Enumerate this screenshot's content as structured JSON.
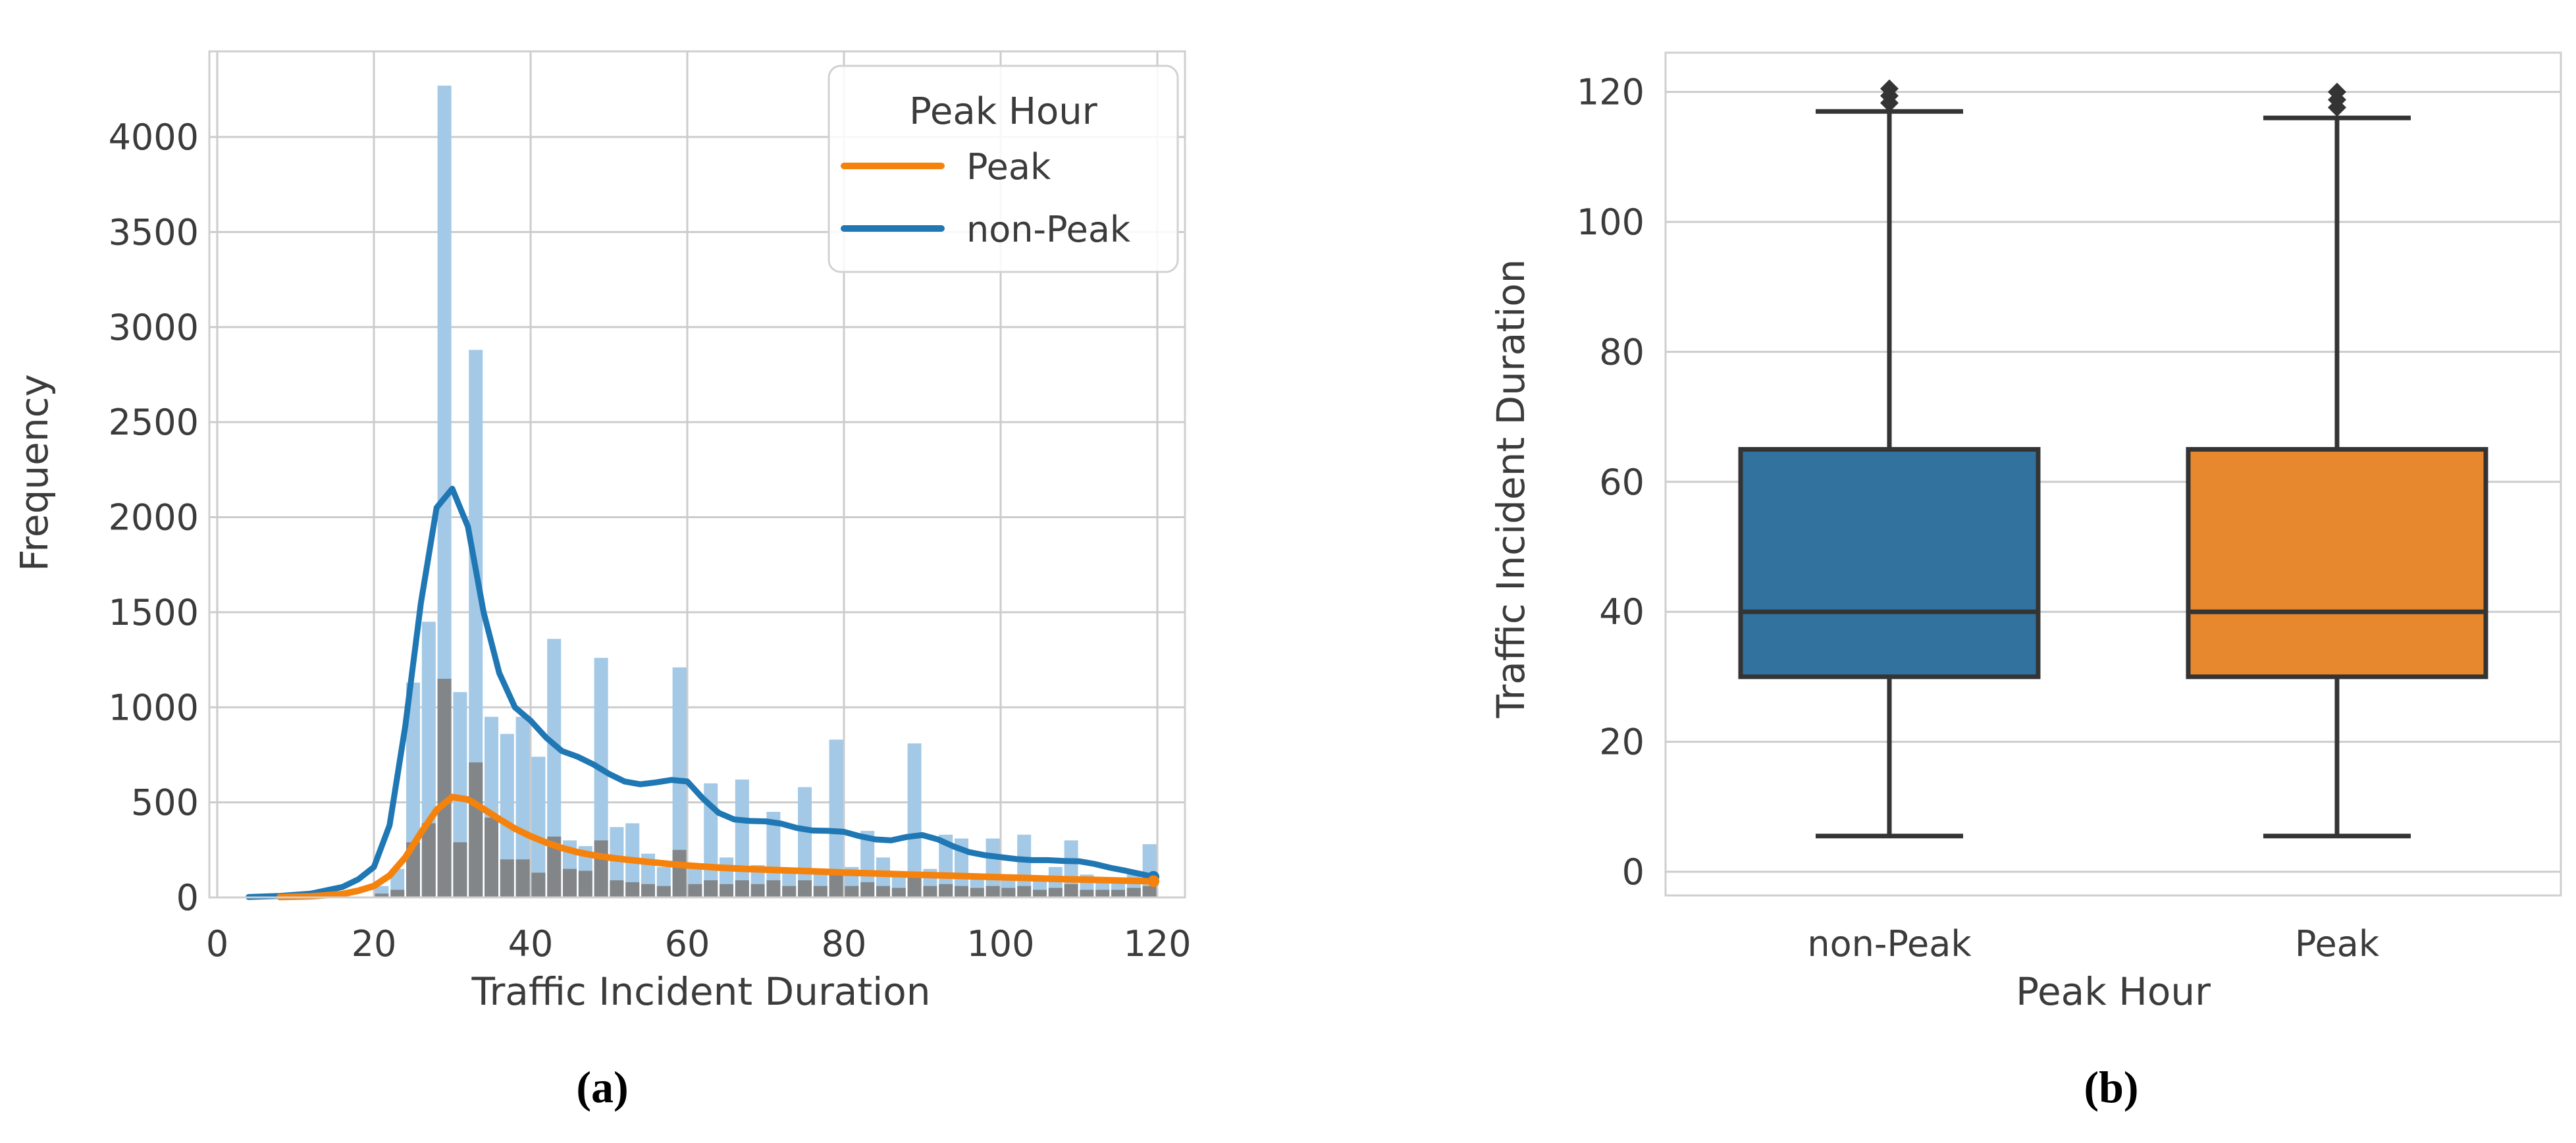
{
  "figure": {
    "captions": {
      "a": "(a)",
      "b": "(b)"
    }
  },
  "colors": {
    "kde_blue": "#1f77b4",
    "kde_orange": "#f5820d",
    "hist_blue": "#a3c9e6",
    "hist_gray": "#828689",
    "box_blue": "#31739e",
    "box_orange": "#e8882e",
    "box_edge": "#343434",
    "grid": "#cccccc",
    "spine": "#cfcfcf",
    "text": "#3b3b3b",
    "legend_border": "#d2d2d2",
    "legend_fill": "#ffffff"
  },
  "chart_data": [
    {
      "type": "histogram+kde",
      "xlabel": "Traffic Incident Duration",
      "ylabel": "Frequency",
      "xlim": [
        -1,
        123.5
      ],
      "ylim": [
        0,
        4450
      ],
      "xticks": [
        0,
        20,
        40,
        60,
        80,
        100,
        120
      ],
      "yticks": [
        0,
        500,
        1000,
        1500,
        2000,
        2500,
        3000,
        3500,
        4000
      ],
      "grid": "both",
      "bin_width": 2,
      "bin_centers": [
        21,
        23,
        25,
        27,
        29,
        31,
        33,
        35,
        37,
        39,
        41,
        43,
        45,
        47,
        49,
        51,
        53,
        55,
        57,
        59,
        61,
        63,
        65,
        67,
        69,
        71,
        73,
        75,
        77,
        79,
        81,
        83,
        85,
        87,
        89,
        91,
        93,
        95,
        97,
        99,
        101,
        103,
        105,
        107,
        109,
        111,
        113,
        115,
        117,
        119
      ],
      "series": [
        {
          "name": "non-Peak",
          "values": [
            60,
            150,
            1130,
            1450,
            4270,
            1080,
            2880,
            950,
            860,
            950,
            740,
            1360,
            300,
            270,
            1260,
            370,
            390,
            230,
            160,
            1210,
            180,
            600,
            210,
            620,
            170,
            450,
            150,
            580,
            140,
            830,
            160,
            350,
            210,
            130,
            810,
            150,
            330,
            310,
            120,
            310,
            100,
            330,
            100,
            160,
            300,
            120,
            100,
            90,
            140,
            280
          ]
        },
        {
          "name": "Peak",
          "values": [
            20,
            40,
            290,
            390,
            1150,
            290,
            710,
            420,
            200,
            200,
            130,
            320,
            150,
            140,
            300,
            90,
            80,
            70,
            60,
            250,
            70,
            90,
            70,
            90,
            70,
            90,
            60,
            90,
            60,
            120,
            60,
            80,
            60,
            50,
            110,
            60,
            70,
            60,
            50,
            60,
            50,
            60,
            40,
            50,
            70,
            40,
            40,
            40,
            50,
            60
          ]
        }
      ],
      "kde": [
        {
          "name": "non-Peak",
          "points": [
            [
              4,
              2
            ],
            [
              8,
              8
            ],
            [
              12,
              20
            ],
            [
              16,
              55
            ],
            [
              18,
              95
            ],
            [
              20,
              160
            ],
            [
              22,
              380
            ],
            [
              24,
              900
            ],
            [
              26,
              1550
            ],
            [
              28,
              2050
            ],
            [
              30,
              2150
            ],
            [
              32,
              1950
            ],
            [
              34,
              1500
            ],
            [
              36,
              1180
            ],
            [
              38,
              1000
            ],
            [
              40,
              930
            ],
            [
              42,
              840
            ],
            [
              44,
              770
            ],
            [
              46,
              740
            ],
            [
              48,
              700
            ],
            [
              50,
              650
            ],
            [
              52,
              610
            ],
            [
              54,
              595
            ],
            [
              56,
              605
            ],
            [
              58,
              618
            ],
            [
              60,
              610
            ],
            [
              62,
              520
            ],
            [
              64,
              445
            ],
            [
              66,
              410
            ],
            [
              68,
              402
            ],
            [
              70,
              400
            ],
            [
              72,
              388
            ],
            [
              74,
              365
            ],
            [
              76,
              352
            ],
            [
              78,
              350
            ],
            [
              80,
              345
            ],
            [
              82,
              322
            ],
            [
              84,
              305
            ],
            [
              86,
              300
            ],
            [
              88,
              318
            ],
            [
              90,
              328
            ],
            [
              92,
              305
            ],
            [
              94,
              268
            ],
            [
              96,
              238
            ],
            [
              98,
              222
            ],
            [
              100,
              212
            ],
            [
              102,
              202
            ],
            [
              104,
              196
            ],
            [
              106,
              196
            ],
            [
              108,
              192
            ],
            [
              110,
              190
            ],
            [
              112,
              176
            ],
            [
              114,
              156
            ],
            [
              116,
              140
            ],
            [
              118,
              122
            ],
            [
              119.5,
              108
            ]
          ]
        },
        {
          "name": "Peak",
          "points": [
            [
              8,
              2
            ],
            [
              12,
              6
            ],
            [
              16,
              18
            ],
            [
              18,
              35
            ],
            [
              20,
              60
            ],
            [
              22,
              115
            ],
            [
              24,
              210
            ],
            [
              26,
              340
            ],
            [
              28,
              460
            ],
            [
              30,
              528
            ],
            [
              32,
              515
            ],
            [
              34,
              465
            ],
            [
              36,
              412
            ],
            [
              38,
              362
            ],
            [
              40,
              322
            ],
            [
              42,
              288
            ],
            [
              44,
              260
            ],
            [
              46,
              238
            ],
            [
              48,
              222
            ],
            [
              50,
              210
            ],
            [
              52,
              200
            ],
            [
              54,
              191
            ],
            [
              56,
              183
            ],
            [
              58,
              175
            ],
            [
              60,
              168
            ],
            [
              64,
              157
            ],
            [
              68,
              149
            ],
            [
              72,
              143
            ],
            [
              76,
              137
            ],
            [
              80,
              131
            ],
            [
              84,
              126
            ],
            [
              88,
              121
            ],
            [
              92,
              116
            ],
            [
              96,
              111
            ],
            [
              100,
              106
            ],
            [
              104,
              101
            ],
            [
              108,
              96
            ],
            [
              112,
              92
            ],
            [
              116,
              88
            ],
            [
              119.5,
              85
            ]
          ]
        }
      ],
      "legend": {
        "title": "Peak Hour",
        "entries": [
          {
            "label": "Peak",
            "color": "#f5820d"
          },
          {
            "label": "non-Peak",
            "color": "#1f77b4"
          }
        ]
      }
    },
    {
      "type": "box",
      "xlabel": "Peak Hour",
      "ylabel": "Traffic Incident Duration",
      "ylim": [
        -4,
        126
      ],
      "yticks": [
        0,
        20,
        40,
        60,
        80,
        100,
        120
      ],
      "grid": "horizontal",
      "categories": [
        "non-Peak",
        "Peak"
      ],
      "boxes": [
        {
          "category": "non-Peak",
          "q1": 30,
          "median": 40,
          "q3": 65,
          "whisker_low": 5.5,
          "whisker_high": 117,
          "outliers": [
            118.3,
            119.4,
            120.5
          ],
          "color": "#31739e"
        },
        {
          "category": "Peak",
          "q1": 30,
          "median": 40,
          "q3": 65,
          "whisker_low": 5.5,
          "whisker_high": 116,
          "outliers": [
            117.6,
            118.8,
            120.0
          ],
          "color": "#e8882e"
        }
      ]
    }
  ]
}
